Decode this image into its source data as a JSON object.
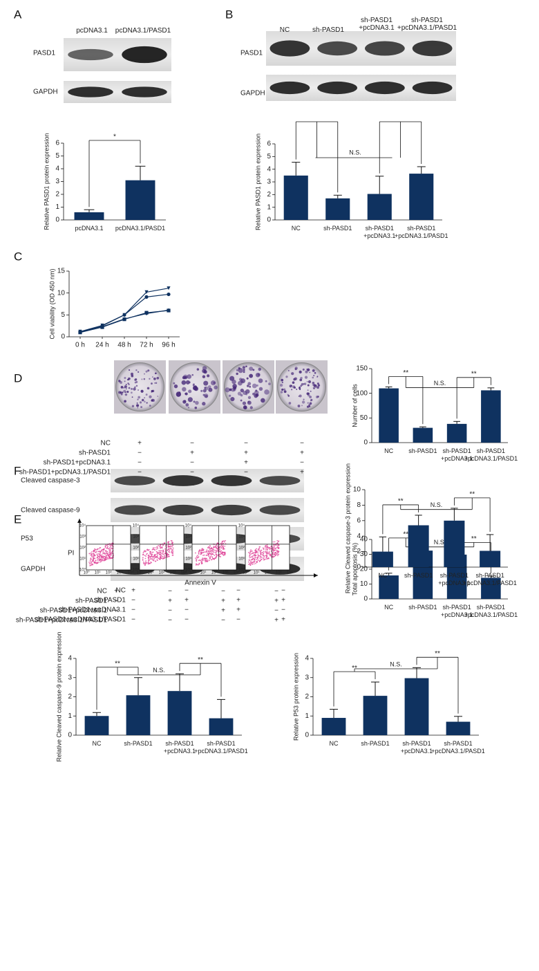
{
  "panel_labels": [
    "A",
    "B",
    "C",
    "D",
    "E",
    "F"
  ],
  "blot_a": {
    "columns": [
      "pcDNA3.1",
      "pcDNA3.1/PASD1"
    ],
    "rows": [
      "PASD1",
      "GAPDH"
    ]
  },
  "blot_b": {
    "columns": [
      "NC",
      "sh-PASD1",
      "sh-PASD1\n+pcDNA3.1",
      "sh-PASD1\n+pcDNA3.1/PASD1"
    ],
    "rows": [
      "PASD1",
      "GAPDH"
    ]
  },
  "blot_f": {
    "rows": [
      "Cleaved caspase-3",
      "Cleaved caspase-9",
      "P53",
      "GAPDH"
    ]
  },
  "flow": {
    "y_label": "PI",
    "x_label": "Annexin V",
    "ticks": [
      "10⁰",
      "10¹",
      "10²",
      "10³",
      "10⁴"
    ]
  },
  "design_tables": [
    {
      "rows": [
        {
          "label": "NC",
          "marks": [
            "+",
            "−",
            "−",
            "−"
          ]
        },
        {
          "label": "sh-PASD1",
          "marks": [
            "−",
            "+",
            "+",
            "+"
          ]
        },
        {
          "label": "sh-PASD1+pcDNA3.1",
          "marks": [
            "−",
            "−",
            "+",
            "−"
          ]
        },
        {
          "label": "sh-PASD1+pcDNA3.1/PASD1",
          "marks": [
            "−",
            "−",
            "−",
            "+"
          ]
        }
      ]
    },
    {
      "rows": [
        {
          "label": "NC",
          "marks": [
            "+",
            "−",
            "−",
            "−"
          ]
        },
        {
          "label": "sh-PASD1",
          "marks": [
            "−",
            "+",
            "+",
            "+"
          ]
        },
        {
          "label": "sh-PASD1+pcDNA3.1",
          "marks": [
            "−",
            "−",
            "+",
            "−"
          ]
        },
        {
          "label": "sh-PASD1+pcDNA3.1/PASD1",
          "marks": [
            "−",
            "−",
            "−",
            "+"
          ]
        }
      ]
    },
    {
      "rows": [
        {
          "label": "NC",
          "marks": [
            "+",
            "−",
            "−",
            "−"
          ]
        },
        {
          "label": "sh-PASD1",
          "marks": [
            "−",
            "+",
            "+",
            "+"
          ]
        },
        {
          "label": "sh-PASD1+pcDNA3.1",
          "marks": [
            "−",
            "−",
            "+",
            "−"
          ]
        },
        {
          "label": "sh-PASD1+pcDNA3.1/PASD1",
          "marks": [
            "−",
            "−",
            "−",
            "+"
          ]
        }
      ]
    }
  ],
  "chart_data": [
    {
      "type": "bar",
      "y_label": "Relative PASD1 protein expression",
      "color": "#0f3260",
      "categories": [
        "pcDNA3.1",
        "pcDNA3.1/PASD1"
      ],
      "values": [
        0.6,
        3.1
      ],
      "errors": [
        0.2,
        1.1
      ],
      "ylim": [
        0,
        6
      ],
      "yticks": [
        0,
        1,
        2,
        3,
        4,
        5,
        6
      ],
      "annotations": [
        "*"
      ]
    },
    {
      "type": "bar",
      "y_label": "Relative PASD1 protein expression",
      "color": "#0f3260",
      "categories": [
        "NC",
        "sh-PASD1",
        "sh-PASD1\n+pcDNA3.1",
        "sh-PASD1\n+pcDNA3.1/PASD1"
      ],
      "values": [
        3.5,
        1.7,
        2.05,
        3.65
      ],
      "errors": [
        1.05,
        0.25,
        1.4,
        0.55
      ],
      "ylim": [
        0,
        6
      ],
      "yticks": [
        0,
        1,
        2,
        3,
        4,
        5,
        6
      ],
      "annotations": [
        "N.S."
      ]
    },
    {
      "type": "line",
      "y_label": "Cell viability (OD 450 nm)",
      "categories": [
        "0 h",
        "24 h",
        "48 h",
        "72 h",
        "96 h"
      ],
      "series": [
        {
          "color": "#0f3260",
          "marker": "triangle",
          "values": [
            1.2,
            2.6,
            5.0,
            10.2,
            11.1
          ]
        },
        {
          "color": "#0f3260",
          "marker": "circle",
          "values": [
            1.1,
            2.5,
            5.0,
            9.1,
            9.7
          ]
        },
        {
          "color": "#0f3260",
          "marker": "square",
          "values": [
            1.0,
            2.2,
            4.0,
            5.5,
            6.0
          ]
        },
        {
          "color": "#0f3260",
          "marker": "diamond",
          "values": [
            1.0,
            2.3,
            4.1,
            5.3,
            6.1
          ]
        }
      ],
      "ylim": [
        0,
        15
      ],
      "yticks": [
        0,
        5,
        10,
        15
      ]
    },
    {
      "type": "bar",
      "y_label": "Number of cells",
      "color": "#0f3260",
      "categories": [
        "NC",
        "sh-PASD1",
        "sh-PASD1\n+pcDNA3.1",
        "sh-PASD1\n+pcDNA3.1/PASD1"
      ],
      "values": [
        110,
        30,
        38,
        106
      ],
      "errors": [
        3,
        2,
        5,
        5
      ],
      "ylim": [
        0,
        150
      ],
      "yticks": [
        0,
        50,
        100,
        150
      ],
      "annotations": [
        "**",
        "N.S.",
        "**"
      ]
    },
    {
      "type": "bar",
      "y_label": "Total apoptosis (%)",
      "color": "#0f3260",
      "categories": [
        "NC",
        "sh-PASD1",
        "sh-PASD1\n+pcDNA3.1",
        "sh-PASD1\n+pcDNA3.1/PASD1"
      ],
      "values": [
        15.8,
        32.5,
        29.8,
        14.2
      ],
      "errors": [
        1.5,
        1.5,
        1.2,
        1.2
      ],
      "ylim": [
        0,
        40
      ],
      "yticks": [
        0,
        10,
        20,
        30,
        40
      ],
      "annotations": [
        "**",
        "N.S.",
        "**"
      ]
    },
    {
      "type": "bar",
      "y_label": "Relative Cleaved caspase-3 protein expression",
      "color": "#0f3260",
      "categories": [
        "NC",
        "sh-PASD1",
        "sh-PASD1\n+pcDNA3.1",
        "sh-PASD1\n+pcDNA3.1/PASD1"
      ],
      "values": [
        2.0,
        5.4,
        6.0,
        2.1
      ],
      "errors": [
        1.9,
        1.3,
        1.6,
        2.1
      ],
      "ylim": [
        0,
        10
      ],
      "yticks": [
        0,
        2,
        4,
        6,
        8,
        10
      ],
      "annotations": [
        "**",
        "N.S.",
        "**"
      ]
    },
    {
      "type": "bar",
      "y_label": "Relative Cleaved caspase-9 protein expression",
      "color": "#0f3260",
      "categories": [
        "NC",
        "sh-PASD1",
        "sh-PASD1\n+pcDNA3.1",
        "sh-PASD1\n+pcDNA3.1/PASD1"
      ],
      "values": [
        1.0,
        2.08,
        2.3,
        0.88
      ],
      "errors": [
        0.18,
        0.92,
        0.9,
        0.98
      ],
      "ylim": [
        0,
        4
      ],
      "yticks": [
        0,
        1,
        2,
        3,
        4
      ],
      "annotations": [
        "**",
        "N.S.",
        "**"
      ]
    },
    {
      "type": "bar",
      "y_label": "Relative P53 protein expression",
      "color": "#0f3260",
      "categories": [
        "NC",
        "sh-PASD1",
        "sh-PASD1\n+pcDNA3.1",
        "sh-PASD1\n+pcDNA3.1/PASD1"
      ],
      "values": [
        0.9,
        2.05,
        2.97,
        0.7
      ],
      "errors": [
        0.45,
        0.72,
        0.55,
        0.28
      ],
      "ylim": [
        0,
        4
      ],
      "yticks": [
        0,
        1,
        2,
        3,
        4
      ],
      "annotations": [
        "**",
        "N.S.",
        "**"
      ]
    }
  ]
}
